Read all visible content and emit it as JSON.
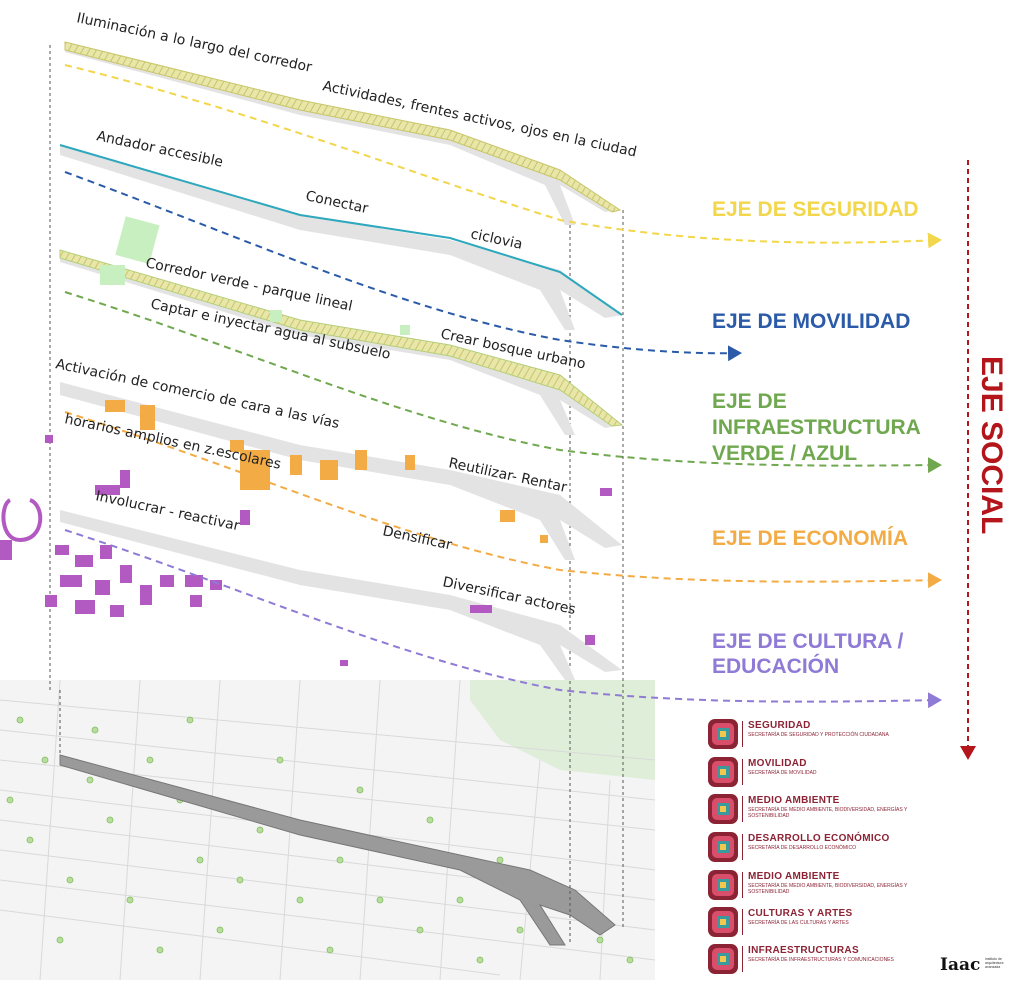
{
  "layer_labels": {
    "l1a": "Iluminación a lo largo del corredor",
    "l1b": "Actividades, frentes activos, ojos en la ciudad",
    "l2a": "Andador accesible",
    "l2b": "Conectar",
    "l2c": "ciclovia",
    "l3a": "Corredor verde  - parque lineal",
    "l3b": "Captar e inyectar agua al subsuelo",
    "l3c": "Crear bosque urbano",
    "l4a": "Activación de comercio de cara a las vías",
    "l4b": "horarios amplios en z.escolares",
    "l4c": "Reutilizar- Rentar",
    "l5a": "Involucrar - reactivar",
    "l5b": "Densificar",
    "l5c": "Diversificar actores"
  },
  "axes": {
    "seguridad": {
      "label": "EJE DE SEGURIDAD",
      "color": "#f2d64b"
    },
    "movilidad": {
      "label": "EJE DE MOVILIDAD",
      "color": "#2b5ba8"
    },
    "verde_l1": "EJE DE",
    "verde_l2": "INFRAESTRUCTURA",
    "verde_l3": "VERDE / AZUL",
    "verde_color": "#6fa84f",
    "economia": {
      "label": "EJE DE ECONOMÍA",
      "color": "#f3ac45"
    },
    "cultura_l1": "EJE DE CULTURA /",
    "cultura_l2": "EDUCACIÓN",
    "cultura_color": "#8f7ad6",
    "social": {
      "label": "EJE SOCIAL",
      "color": "#b3151b"
    }
  },
  "legend": [
    {
      "title": "SEGURIDAD",
      "subtitle": "SECRETARÍA DE SEGURIDAD Y PROTECCIÓN CIUDADANA"
    },
    {
      "title": "MOVILIDAD",
      "subtitle": "SECRETARÍA DE MOVILIDAD"
    },
    {
      "title": "MEDIO AMBIENTE",
      "subtitle": "SECRETARÍA DE MEDIO AMBIENTE, BIODIVERSIDAD, ENERGÍAS Y SOSTENIBILIDAD"
    },
    {
      "title": "DESARROLLO ECONÓMICO",
      "subtitle": "SECRETARÍA DE DESARROLLO ECONÓMICO"
    },
    {
      "title": "MEDIO AMBIENTE",
      "subtitle": "SECRETARÍA DE MEDIO AMBIENTE, BIODIVERSIDAD, ENERGÍAS Y SOSTENIBILIDAD"
    },
    {
      "title": "CULTURAS Y ARTES",
      "subtitle": "SECRETARÍA DE LAS CULTURAS Y ARTES"
    },
    {
      "title": "INFRAESTRUCTURAS",
      "subtitle": "SECRETARÍA DE INFRAESTRUCTURAS Y COMUNICACIONES"
    }
  ],
  "logo": {
    "brand": "Iaac",
    "tagline": "instituto de arquitectura avanzada"
  }
}
